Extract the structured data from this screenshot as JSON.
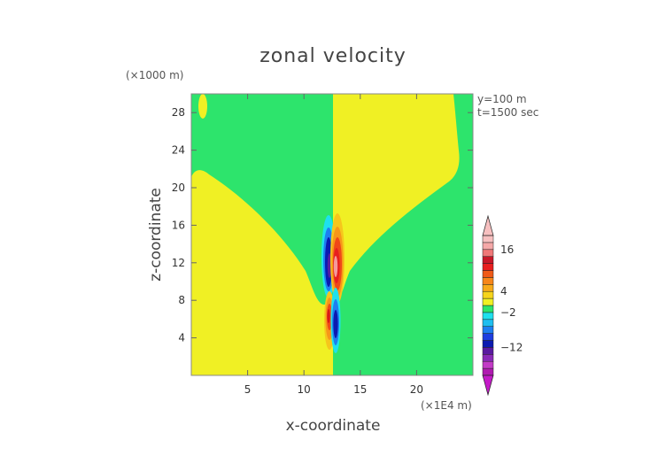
{
  "chart_data": {
    "type": "heatmap",
    "title": "zonal velocity",
    "xlabel": "x-coordinate",
    "ylabel": "z-coordinate",
    "x_unit": "(×1E4 m)",
    "y_unit": "(×1000 m)",
    "xlim": [
      0,
      25
    ],
    "ylim": [
      0,
      30
    ],
    "x_ticks": [
      5,
      10,
      15,
      20
    ],
    "y_ticks": [
      4,
      8,
      12,
      16,
      20,
      24,
      28
    ],
    "annotations": [
      "y=100 m",
      "t=1500 sec"
    ],
    "colorbar": {
      "labels": [
        16,
        4,
        -2,
        -12
      ],
      "levels": [
        -20,
        -18,
        -16,
        -14,
        -12,
        -10,
        -8,
        -6,
        -4,
        -2,
        0,
        2,
        4,
        6,
        8,
        10,
        12,
        14,
        16,
        18,
        20
      ],
      "extend": "both"
    },
    "regions": [
      {
        "name": "background-left",
        "value_range": [
          -2,
          0
        ]
      },
      {
        "name": "background-right",
        "value_range": [
          0,
          2
        ]
      },
      {
        "name": "v-wedge-left",
        "value_range": [
          0,
          2
        ]
      },
      {
        "name": "v-wedge-right",
        "value_range": [
          -2,
          0
        ]
      },
      {
        "name": "upper-negative-cell",
        "x": 12.2,
        "z": 12,
        "min": -12
      },
      {
        "name": "upper-positive-cell",
        "x": 12.9,
        "z": 12,
        "max": 16
      },
      {
        "name": "lower-positive-cell",
        "x": 12.2,
        "z": 5.5,
        "max": 10
      },
      {
        "name": "lower-negative-cell",
        "x": 12.9,
        "z": 5.5,
        "min": -10
      }
    ]
  }
}
